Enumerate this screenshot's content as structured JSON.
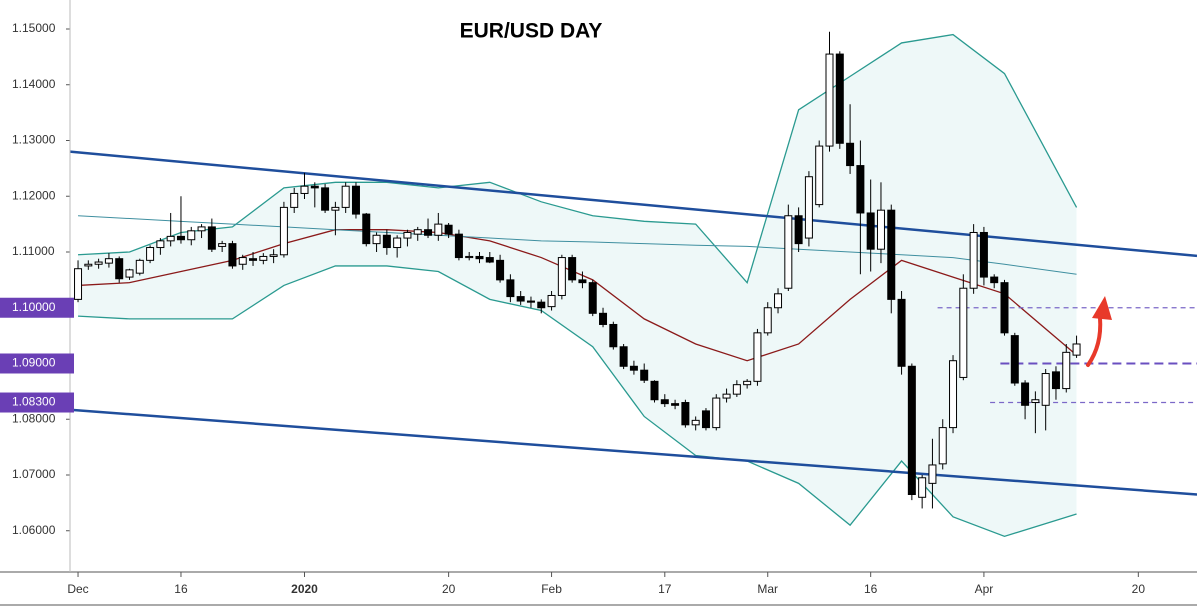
{
  "chart_data": {
    "type": "candlestick",
    "title": "EUR/USD DAY",
    "xlim": [
      -0.78,
      108.7
    ],
    "xticks": [
      {
        "value": 0,
        "label": "Dec"
      },
      {
        "value": 10,
        "label": "16"
      },
      {
        "value": 22,
        "label": "2020"
      },
      {
        "value": 36,
        "label": "20"
      },
      {
        "value": 46,
        "label": "Feb"
      },
      {
        "value": 57,
        "label": "17"
      },
      {
        "value": 67,
        "label": "Mar"
      },
      {
        "value": 77,
        "label": "16"
      },
      {
        "value": 88,
        "label": "Apr"
      },
      {
        "value": 103,
        "label": "20"
      }
    ],
    "ylim": [
      1.0526,
      1.1552
    ],
    "yticks": [
      {
        "value": 1.06,
        "label": "1.06000"
      },
      {
        "value": 1.07,
        "label": "1.07000"
      },
      {
        "value": 1.08,
        "label": "1.08000"
      },
      {
        "value": 1.09,
        "label": "1.09000"
      },
      {
        "value": 1.1,
        "label": "1.10000"
      },
      {
        "value": 1.11,
        "label": "1.11000"
      },
      {
        "value": 1.12,
        "label": "1.12000"
      },
      {
        "value": 1.13,
        "label": "1.13000"
      },
      {
        "value": 1.14,
        "label": "1.14000"
      },
      {
        "value": 1.15,
        "label": "1.15000"
      }
    ],
    "up_color": "#ffffff",
    "down_color": "#000000",
    "candles": {
      "x": [
        0,
        1,
        2,
        3,
        4,
        5,
        6,
        7,
        8,
        9,
        10,
        11,
        12,
        13,
        14,
        15,
        16,
        17,
        18,
        19,
        20,
        21,
        22,
        23,
        24,
        25,
        26,
        27,
        28,
        29,
        30,
        31,
        32,
        33,
        34,
        35,
        36,
        37,
        38,
        39,
        40,
        41,
        42,
        43,
        44,
        45,
        46,
        47,
        48,
        49,
        50,
        51,
        52,
        53,
        54,
        55,
        56,
        57,
        58,
        59,
        60,
        61,
        62,
        63,
        64,
        65,
        66,
        67,
        68,
        69,
        70,
        71,
        72,
        73,
        74,
        75,
        76,
        77,
        78,
        79,
        80,
        81,
        82,
        83,
        84,
        85,
        86,
        87,
        88,
        89,
        90,
        91,
        92,
        93,
        94,
        95,
        96,
        97
      ],
      "open": [
        1.1015,
        1.1075,
        1.1078,
        1.108,
        1.1088,
        1.1055,
        1.1062,
        1.1085,
        1.1108,
        1.112,
        1.1128,
        1.1122,
        1.1138,
        1.1145,
        1.111,
        1.1115,
        1.1078,
        1.1088,
        1.1085,
        1.1092,
        1.1095,
        1.118,
        1.1205,
        1.1218,
        1.1215,
        1.1175,
        1.118,
        1.1218,
        1.1168,
        1.1115,
        1.113,
        1.1108,
        1.1125,
        1.1132,
        1.114,
        1.113,
        1.1148,
        1.1132,
        1.109,
        1.1092,
        1.109,
        1.1085,
        1.105,
        1.102,
        1.1012,
        1.101,
        1.1002,
        1.1022,
        1.109,
        1.105,
        1.1045,
        1.099,
        1.097,
        1.093,
        1.0895,
        1.0888,
        1.0868,
        1.0835,
        1.0828,
        1.083,
        1.079,
        1.0815,
        1.0785,
        1.0838,
        1.0845,
        1.0862,
        1.0868,
        1.0955,
        1.1,
        1.1035,
        1.1165,
        1.1125,
        1.1185,
        1.129,
        1.1455,
        1.1295,
        1.1255,
        1.117,
        1.1105,
        1.1175,
        1.1015,
        1.0895,
        1.066,
        1.0685,
        1.072,
        1.0785,
        1.0875,
        1.1035,
        1.1135,
        1.1055,
        1.1045,
        1.095,
        1.0865,
        1.083,
        1.0825,
        1.0885,
        1.0855,
        1.0915
      ],
      "high": [
        1.1085,
        1.1085,
        1.1088,
        1.1098,
        1.1092,
        1.107,
        1.1088,
        1.1112,
        1.1125,
        1.117,
        1.12,
        1.1145,
        1.115,
        1.116,
        1.112,
        1.112,
        1.1095,
        1.11,
        1.1098,
        1.1105,
        1.119,
        1.1215,
        1.1242,
        1.1225,
        1.1222,
        1.119,
        1.1225,
        1.1225,
        1.117,
        1.1135,
        1.114,
        1.113,
        1.114,
        1.1145,
        1.116,
        1.117,
        1.1152,
        1.114,
        1.11,
        1.11,
        1.11,
        1.1095,
        1.106,
        1.103,
        1.102,
        1.1015,
        1.103,
        1.1095,
        1.1095,
        1.1065,
        1.105,
        1.1,
        1.0975,
        1.0935,
        1.0905,
        1.09,
        1.087,
        1.0845,
        1.0835,
        1.0835,
        1.0805,
        1.082,
        1.0845,
        1.0855,
        1.087,
        1.0872,
        1.0962,
        1.101,
        1.1035,
        1.1185,
        1.118,
        1.1245,
        1.13,
        1.1495,
        1.146,
        1.1365,
        1.13,
        1.123,
        1.1225,
        1.1185,
        1.103,
        1.09,
        1.07,
        1.0765,
        1.08,
        1.0915,
        1.106,
        1.115,
        1.1145,
        1.106,
        1.105,
        1.0955,
        1.087,
        1.085,
        1.089,
        1.0895,
        1.0935,
        1.095
      ],
      "low": [
        1.101,
        1.1068,
        1.107,
        1.1072,
        1.1045,
        1.105,
        1.1058,
        1.108,
        1.1095,
        1.111,
        1.1115,
        1.1112,
        1.1125,
        1.11,
        1.11,
        1.107,
        1.1068,
        1.1075,
        1.1078,
        1.108,
        1.109,
        1.117,
        1.1195,
        1.118,
        1.117,
        1.113,
        1.117,
        1.116,
        1.111,
        1.11,
        1.1095,
        1.109,
        1.111,
        1.112,
        1.1125,
        1.112,
        1.1125,
        1.1085,
        1.1085,
        1.108,
        1.108,
        1.1045,
        1.101,
        1.1005,
        1.1,
        1.099,
        1.0995,
        1.1015,
        1.1045,
        1.1035,
        1.0985,
        1.0965,
        1.0925,
        1.089,
        1.088,
        1.0865,
        1.083,
        1.0822,
        1.0818,
        1.0785,
        1.078,
        1.078,
        1.078,
        1.083,
        1.084,
        1.0855,
        1.086,
        1.095,
        1.099,
        1.103,
        1.11,
        1.111,
        1.118,
        1.128,
        1.1285,
        1.124,
        1.106,
        1.1065,
        1.108,
        1.099,
        1.088,
        1.0655,
        1.064,
        1.064,
        1.071,
        1.0775,
        1.087,
        1.1025,
        1.104,
        1.1035,
        1.095,
        1.086,
        1.08,
        1.0775,
        1.078,
        1.0835,
        1.0848,
        1.091
      ],
      "close": [
        1.107,
        1.1078,
        1.1082,
        1.1088,
        1.1052,
        1.1068,
        1.1085,
        1.1108,
        1.112,
        1.1128,
        1.1122,
        1.1138,
        1.1145,
        1.1105,
        1.1115,
        1.1075,
        1.109,
        1.1085,
        1.1092,
        1.1095,
        1.118,
        1.1205,
        1.1218,
        1.1215,
        1.1175,
        1.118,
        1.1218,
        1.1168,
        1.1115,
        1.113,
        1.1108,
        1.1125,
        1.1135,
        1.114,
        1.113,
        1.115,
        1.1132,
        1.109,
        1.1092,
        1.1088,
        1.1082,
        1.105,
        1.102,
        1.1012,
        1.101,
        1.1,
        1.1022,
        1.109,
        1.105,
        1.1045,
        1.099,
        1.097,
        1.093,
        1.0895,
        1.0888,
        1.087,
        1.0835,
        1.0828,
        1.0825,
        1.079,
        1.0798,
        1.0785,
        1.0838,
        1.0845,
        1.0862,
        1.0868,
        1.0955,
        1.1,
        1.1025,
        1.1165,
        1.1115,
        1.1235,
        1.129,
        1.1455,
        1.1295,
        1.1255,
        1.117,
        1.1105,
        1.1175,
        1.1015,
        1.0895,
        1.0665,
        1.0695,
        1.0718,
        1.0785,
        1.0905,
        1.1035,
        1.1135,
        1.1055,
        1.1045,
        1.0955,
        1.0865,
        1.0825,
        1.0835,
        1.0882,
        1.0855,
        1.092,
        1.0935
      ]
    },
    "overlays": {
      "x": [
        0,
        5,
        10,
        15,
        20,
        25,
        30,
        35,
        40,
        45,
        50,
        55,
        60,
        65,
        70,
        75,
        80,
        85,
        90,
        97
      ],
      "series": [
        {
          "color": "#2a9a90",
          "values": [
            1.1095,
            1.11,
            1.1135,
            1.1145,
            1.1215,
            1.1225,
            1.1225,
            1.1215,
            1.1225,
            1.119,
            1.1165,
            1.1155,
            1.115,
            1.1045,
            1.1355,
            1.1415,
            1.1475,
            1.149,
            1.142,
            1.118
          ]
        },
        {
          "color": "#2a9a90",
          "values": [
            1.0985,
            1.098,
            1.098,
            1.098,
            1.104,
            1.1075,
            1.1075,
            1.1065,
            1.1015,
            1.0995,
            1.093,
            1.0805,
            1.0735,
            1.0725,
            1.0685,
            1.061,
            1.0725,
            1.0625,
            1.059,
            1.063
          ]
        },
        {
          "color": "#8b1a1a",
          "values": [
            1.104,
            1.1045,
            1.1065,
            1.1085,
            1.1115,
            1.114,
            1.114,
            1.1135,
            1.112,
            1.109,
            1.105,
            1.098,
            1.0935,
            1.0905,
            1.0935,
            1.1015,
            1.1085,
            1.1055,
            1.1025,
            1.0915
          ]
        },
        {
          "color": "#3f8fa0",
          "values": [
            1.1165,
            1.116,
            1.1155,
            1.115,
            1.1145,
            1.114,
            1.1135,
            1.113,
            1.1125,
            1.112,
            1.1118,
            1.1115,
            1.1112,
            1.111,
            1.1105,
            1.11,
            1.1095,
            1.109,
            1.1078,
            1.106
          ]
        }
      ],
      "band_fill": "#eef8f8"
    },
    "trendlines": [
      {
        "color": "#1f4e9c",
        "x": [
          -0.78,
          108.7
        ],
        "values": [
          1.128,
          1.1093
        ]
      },
      {
        "color": "#1f4e9c",
        "x": [
          -0.78,
          108.7
        ],
        "values": [
          1.0817,
          1.0665
        ]
      }
    ],
    "levels": [
      {
        "value": 1.1,
        "label": "1.10000",
        "from": 83.5,
        "color": "#7b68c8"
      },
      {
        "value": 1.09,
        "label": "1.09000",
        "from": 89.6,
        "color": "#6a4fc0"
      },
      {
        "value": 1.083,
        "label": "1.08300",
        "from": 88.6,
        "color": "#7b68c8"
      }
    ]
  }
}
